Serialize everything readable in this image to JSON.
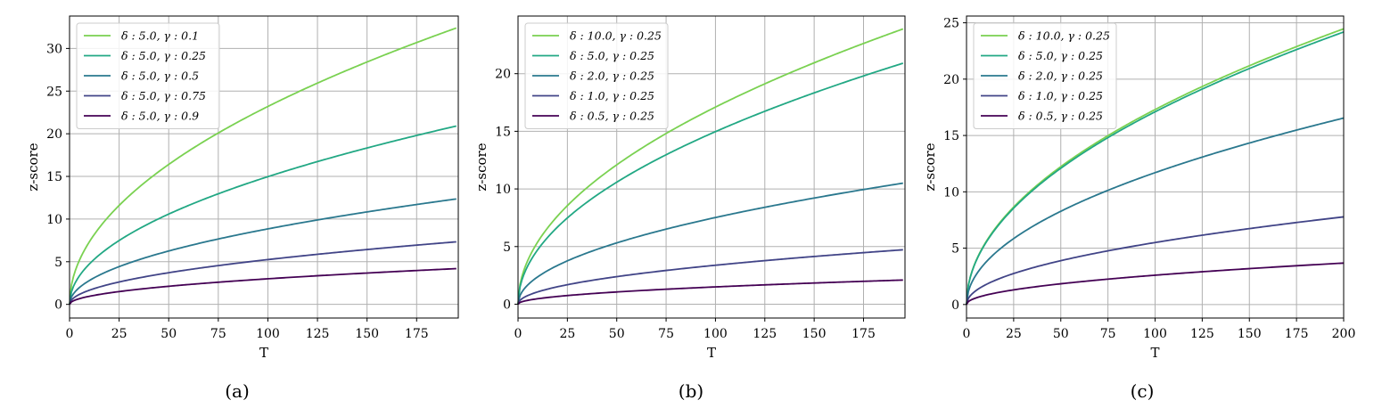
{
  "colors": {
    "series": [
      "#7ad151",
      "#22a884",
      "#2a788e",
      "#414487",
      "#440154"
    ],
    "grid": "#b0b0b0",
    "axis": "#000000",
    "legend_border": "#cccccc"
  },
  "chart_data": [
    {
      "type": "line",
      "panel_label": "(a)",
      "xlabel": "T",
      "ylabel": "z-score",
      "xlim": [
        0,
        196
      ],
      "ylim": [
        -1.6,
        33.8
      ],
      "xticks": [
        0,
        25,
        50,
        75,
        100,
        125,
        150,
        175
      ],
      "yticks": [
        0,
        5,
        10,
        15,
        20,
        25,
        30
      ],
      "grid": true,
      "legend": "upper-left",
      "series": [
        {
          "name": "δ : 5.0, γ : 0.1",
          "coef": 2.32,
          "x_end": 195
        },
        {
          "name": "δ : 5.0, γ : 0.25",
          "coef": 1.497,
          "x_end": 195
        },
        {
          "name": "δ : 5.0, γ : 0.5",
          "coef": 0.885,
          "x_end": 195
        },
        {
          "name": "δ : 5.0, γ : 0.75",
          "coef": 0.525,
          "x_end": 195
        },
        {
          "name": "δ : 5.0, γ : 0.9",
          "coef": 0.3,
          "x_end": 195
        }
      ]
    },
    {
      "type": "line",
      "panel_label": "(b)",
      "xlabel": "T",
      "ylabel": "z-score",
      "xlim": [
        0,
        196
      ],
      "ylim": [
        -1.2,
        25.0
      ],
      "xticks": [
        0,
        25,
        50,
        75,
        100,
        125,
        150,
        175
      ],
      "yticks": [
        0,
        5,
        10,
        15,
        20
      ],
      "grid": true,
      "legend": "upper-left",
      "series": [
        {
          "name": "δ : 10.0, γ : 0.25",
          "coef": 1.71,
          "x_end": 195
        },
        {
          "name": "δ : 5.0, γ : 0.25",
          "coef": 1.497,
          "x_end": 195
        },
        {
          "name": "δ : 2.0, γ : 0.25",
          "coef": 0.752,
          "x_end": 195
        },
        {
          "name": "δ : 1.0, γ : 0.25",
          "coef": 0.338,
          "x_end": 195
        },
        {
          "name": "δ : 0.5, γ : 0.25",
          "coef": 0.15,
          "x_end": 195
        }
      ]
    },
    {
      "type": "line",
      "panel_label": "(c)",
      "xlabel": "T",
      "ylabel": "z-score",
      "xlim": [
        0,
        200
      ],
      "ylim": [
        -1.2,
        25.6
      ],
      "xticks": [
        0,
        25,
        50,
        75,
        100,
        125,
        150,
        175,
        200
      ],
      "yticks": [
        0,
        5,
        10,
        15,
        20,
        25
      ],
      "grid": true,
      "legend": "upper-left",
      "series": [
        {
          "name": "δ : 10.0, γ : 0.25",
          "coef": 1.73,
          "x_end": 200
        },
        {
          "name": "δ : 5.0, γ : 0.25",
          "coef": 1.71,
          "x_end": 200
        },
        {
          "name": "δ : 2.0, γ : 0.25",
          "coef": 1.17,
          "x_end": 200
        },
        {
          "name": "δ : 1.0, γ : 0.25",
          "coef": 0.55,
          "x_end": 200
        },
        {
          "name": "δ : 0.5, γ : 0.25",
          "coef": 0.26,
          "x_end": 200
        }
      ]
    }
  ]
}
